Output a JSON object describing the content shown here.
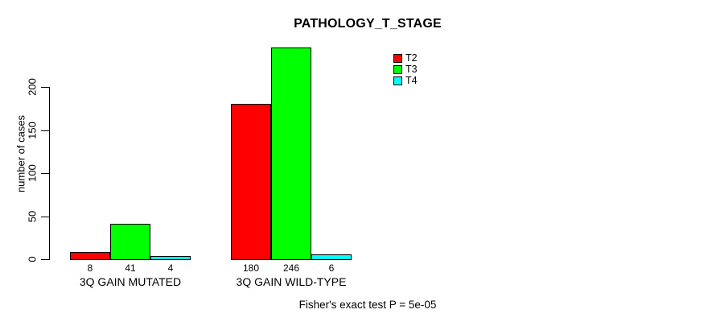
{
  "chart_data": {
    "type": "bar",
    "title": "PATHOLOGY_T_STAGE",
    "ylabel": "number of cases",
    "xlabel": "",
    "categories": [
      "3Q GAIN MUTATED",
      "3Q GAIN WILD-TYPE"
    ],
    "series": [
      {
        "name": "T2",
        "color": "#ff0000",
        "values": [
          8,
          180
        ]
      },
      {
        "name": "T3",
        "color": "#00ff00",
        "values": [
          41,
          246
        ]
      },
      {
        "name": "T4",
        "color": "#00ffff",
        "values": [
          4,
          6
        ]
      }
    ],
    "yticks": [
      0,
      50,
      100,
      150,
      200
    ],
    "ylim": [
      0,
      250
    ],
    "grid": false,
    "bar_value_labels_shown": true,
    "legend_position": "top-right",
    "legend_entries": [
      "T2",
      "T3",
      "T4"
    ],
    "annotation": "Fisher's exact test P = 5e-05"
  },
  "colors": {
    "background": "#ffffff",
    "axis": "#000000",
    "text": "#000000"
  }
}
